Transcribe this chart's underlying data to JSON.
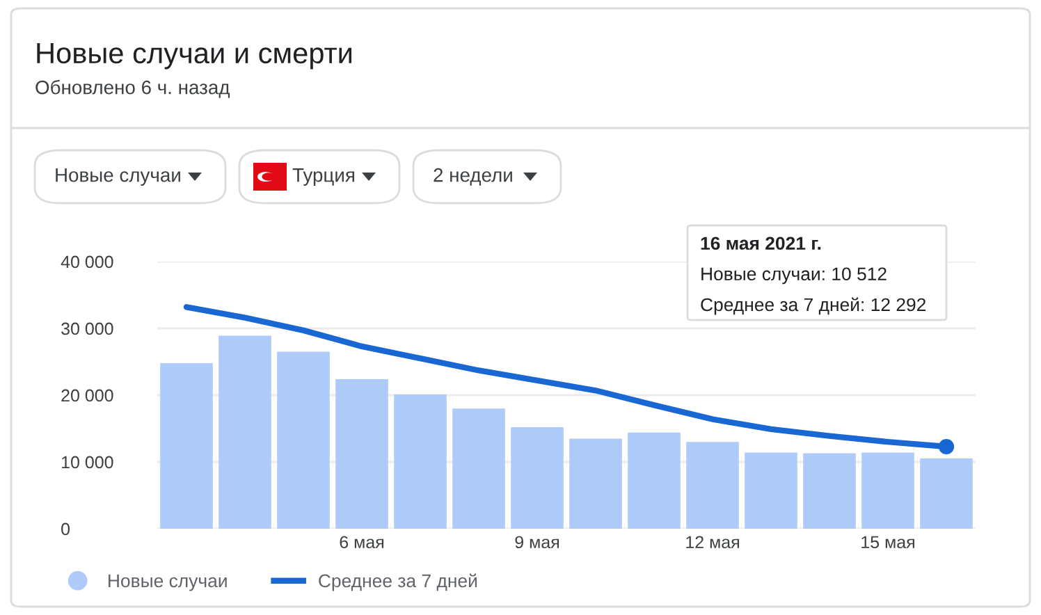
{
  "chart_data": {
    "type": "bar",
    "title": "Новые случаи и смерти",
    "subtitle": "Обновлено 6 ч. назад",
    "categories": [
      null,
      null,
      null,
      "6 мая",
      null,
      null,
      "9 мая",
      null,
      null,
      "12 мая",
      null,
      null,
      "15 мая",
      null
    ],
    "series": [
      {
        "name": "Новые случаи",
        "color": "#aecbfa",
        "values": [
          24800,
          28900,
          26500,
          22400,
          20100,
          18000,
          15200,
          13500,
          14400,
          13000,
          11400,
          11300,
          11400,
          10512
        ]
      },
      {
        "name": "Среднее за 7 дней",
        "type": "line",
        "color": "#1967d2",
        "values": [
          33200,
          31600,
          29700,
          27300,
          25500,
          23700,
          22200,
          20700,
          18500,
          16400,
          14900,
          13900,
          13000,
          12292
        ]
      }
    ],
    "ylim": [
      0,
      40000
    ],
    "yticks": [
      {
        "value": 0,
        "label": "0"
      },
      {
        "value": 10000,
        "label": "10 000"
      },
      {
        "value": 20000,
        "label": "20 000"
      },
      {
        "value": 30000,
        "label": "30 000"
      },
      {
        "value": 40000,
        "label": "40 000"
      }
    ],
    "grid": "y",
    "legend": "bottom",
    "annotations": [
      "Новые случаи",
      "Турция",
      "2 недели",
      "16 мая 2021 г.",
      "Новые случаи: 10 512",
      "Среднее за 7 дней: 12 292"
    ]
  }
}
